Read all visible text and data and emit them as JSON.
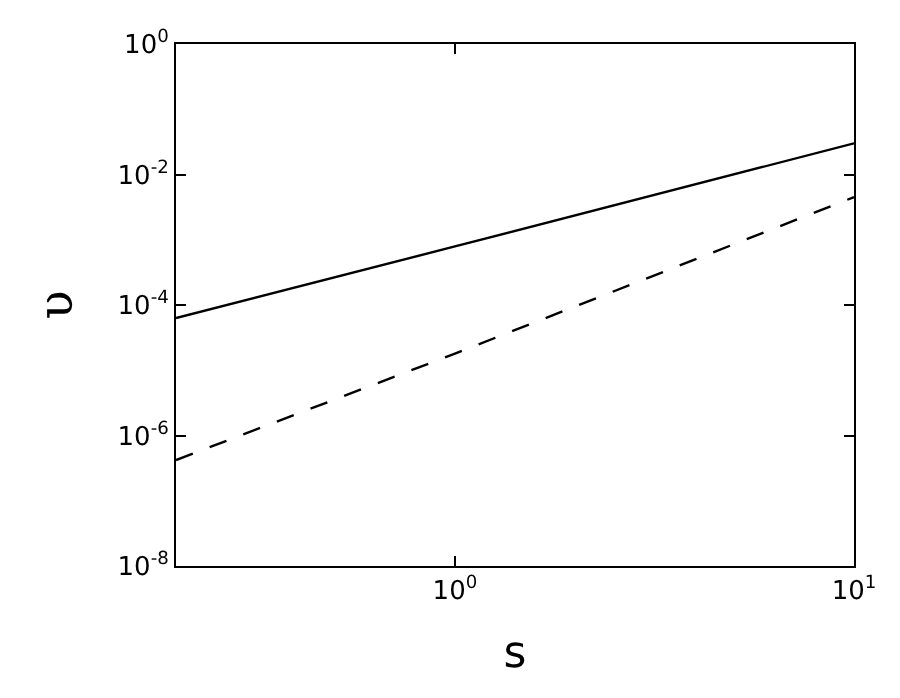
{
  "chart_data": {
    "type": "line",
    "xlabel": "s",
    "ylabel": "υ",
    "log": "xy",
    "xlim": [
      0.2,
      10
    ],
    "ylim": [
      1e-08,
      1
    ],
    "xticks": [
      {
        "value": 1,
        "label": "10$^{0}$"
      },
      {
        "value": 10,
        "label": "10$^{1}$"
      }
    ],
    "yticks": [
      {
        "value": 1e-08,
        "label": "10$^{-8}$"
      },
      {
        "value": 1e-06,
        "label": "10$^{-6}$"
      },
      {
        "value": 0.0001,
        "label": "10$^{-4}$"
      },
      {
        "value": 0.01,
        "label": "10$^{-2}$"
      },
      {
        "value": 1,
        "label": "10$^{0}$"
      }
    ],
    "series": [
      {
        "color": "#000000",
        "line_style": "solid",
        "x": [
          0.2,
          1,
          10
        ],
        "values": [
          6.3e-05,
          0.00079,
          0.03
        ]
      },
      {
        "color": "#000000",
        "line_style": "dashed",
        "x": [
          0.2,
          1,
          10
        ],
        "values": [
          4.2e-07,
          1.8e-05,
          0.0045
        ]
      }
    ]
  }
}
